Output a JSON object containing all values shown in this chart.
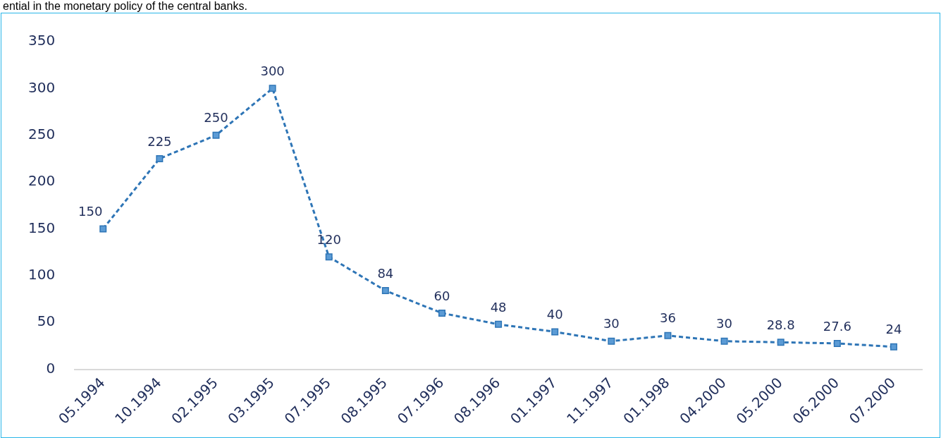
{
  "chart_data": {
    "type": "line",
    "annotations": [
      "ential in the monetary policy of the central banks."
    ],
    "categories": [
      "05.1994",
      "10.1994",
      "02.1995",
      "03.1995",
      "07.1995",
      "08.1995",
      "07.1996",
      "08.1996",
      "01.1997",
      "11.1997",
      "01.1998",
      "04.2000",
      "05.2000",
      "06.2000",
      "07.2000"
    ],
    "series": [
      {
        "color": "#2e75b6",
        "values": [
          150,
          225,
          250,
          300,
          120,
          84,
          60,
          48,
          40,
          30,
          36,
          30,
          28.8,
          27.6,
          24
        ]
      }
    ],
    "ylim": [
      0,
      350
    ],
    "yticks": [
      0,
      50,
      100,
      150,
      200,
      250,
      300,
      350
    ],
    "grid": false,
    "legend": false,
    "marker": "square",
    "line_style": "dashed",
    "data_labels": true
  }
}
